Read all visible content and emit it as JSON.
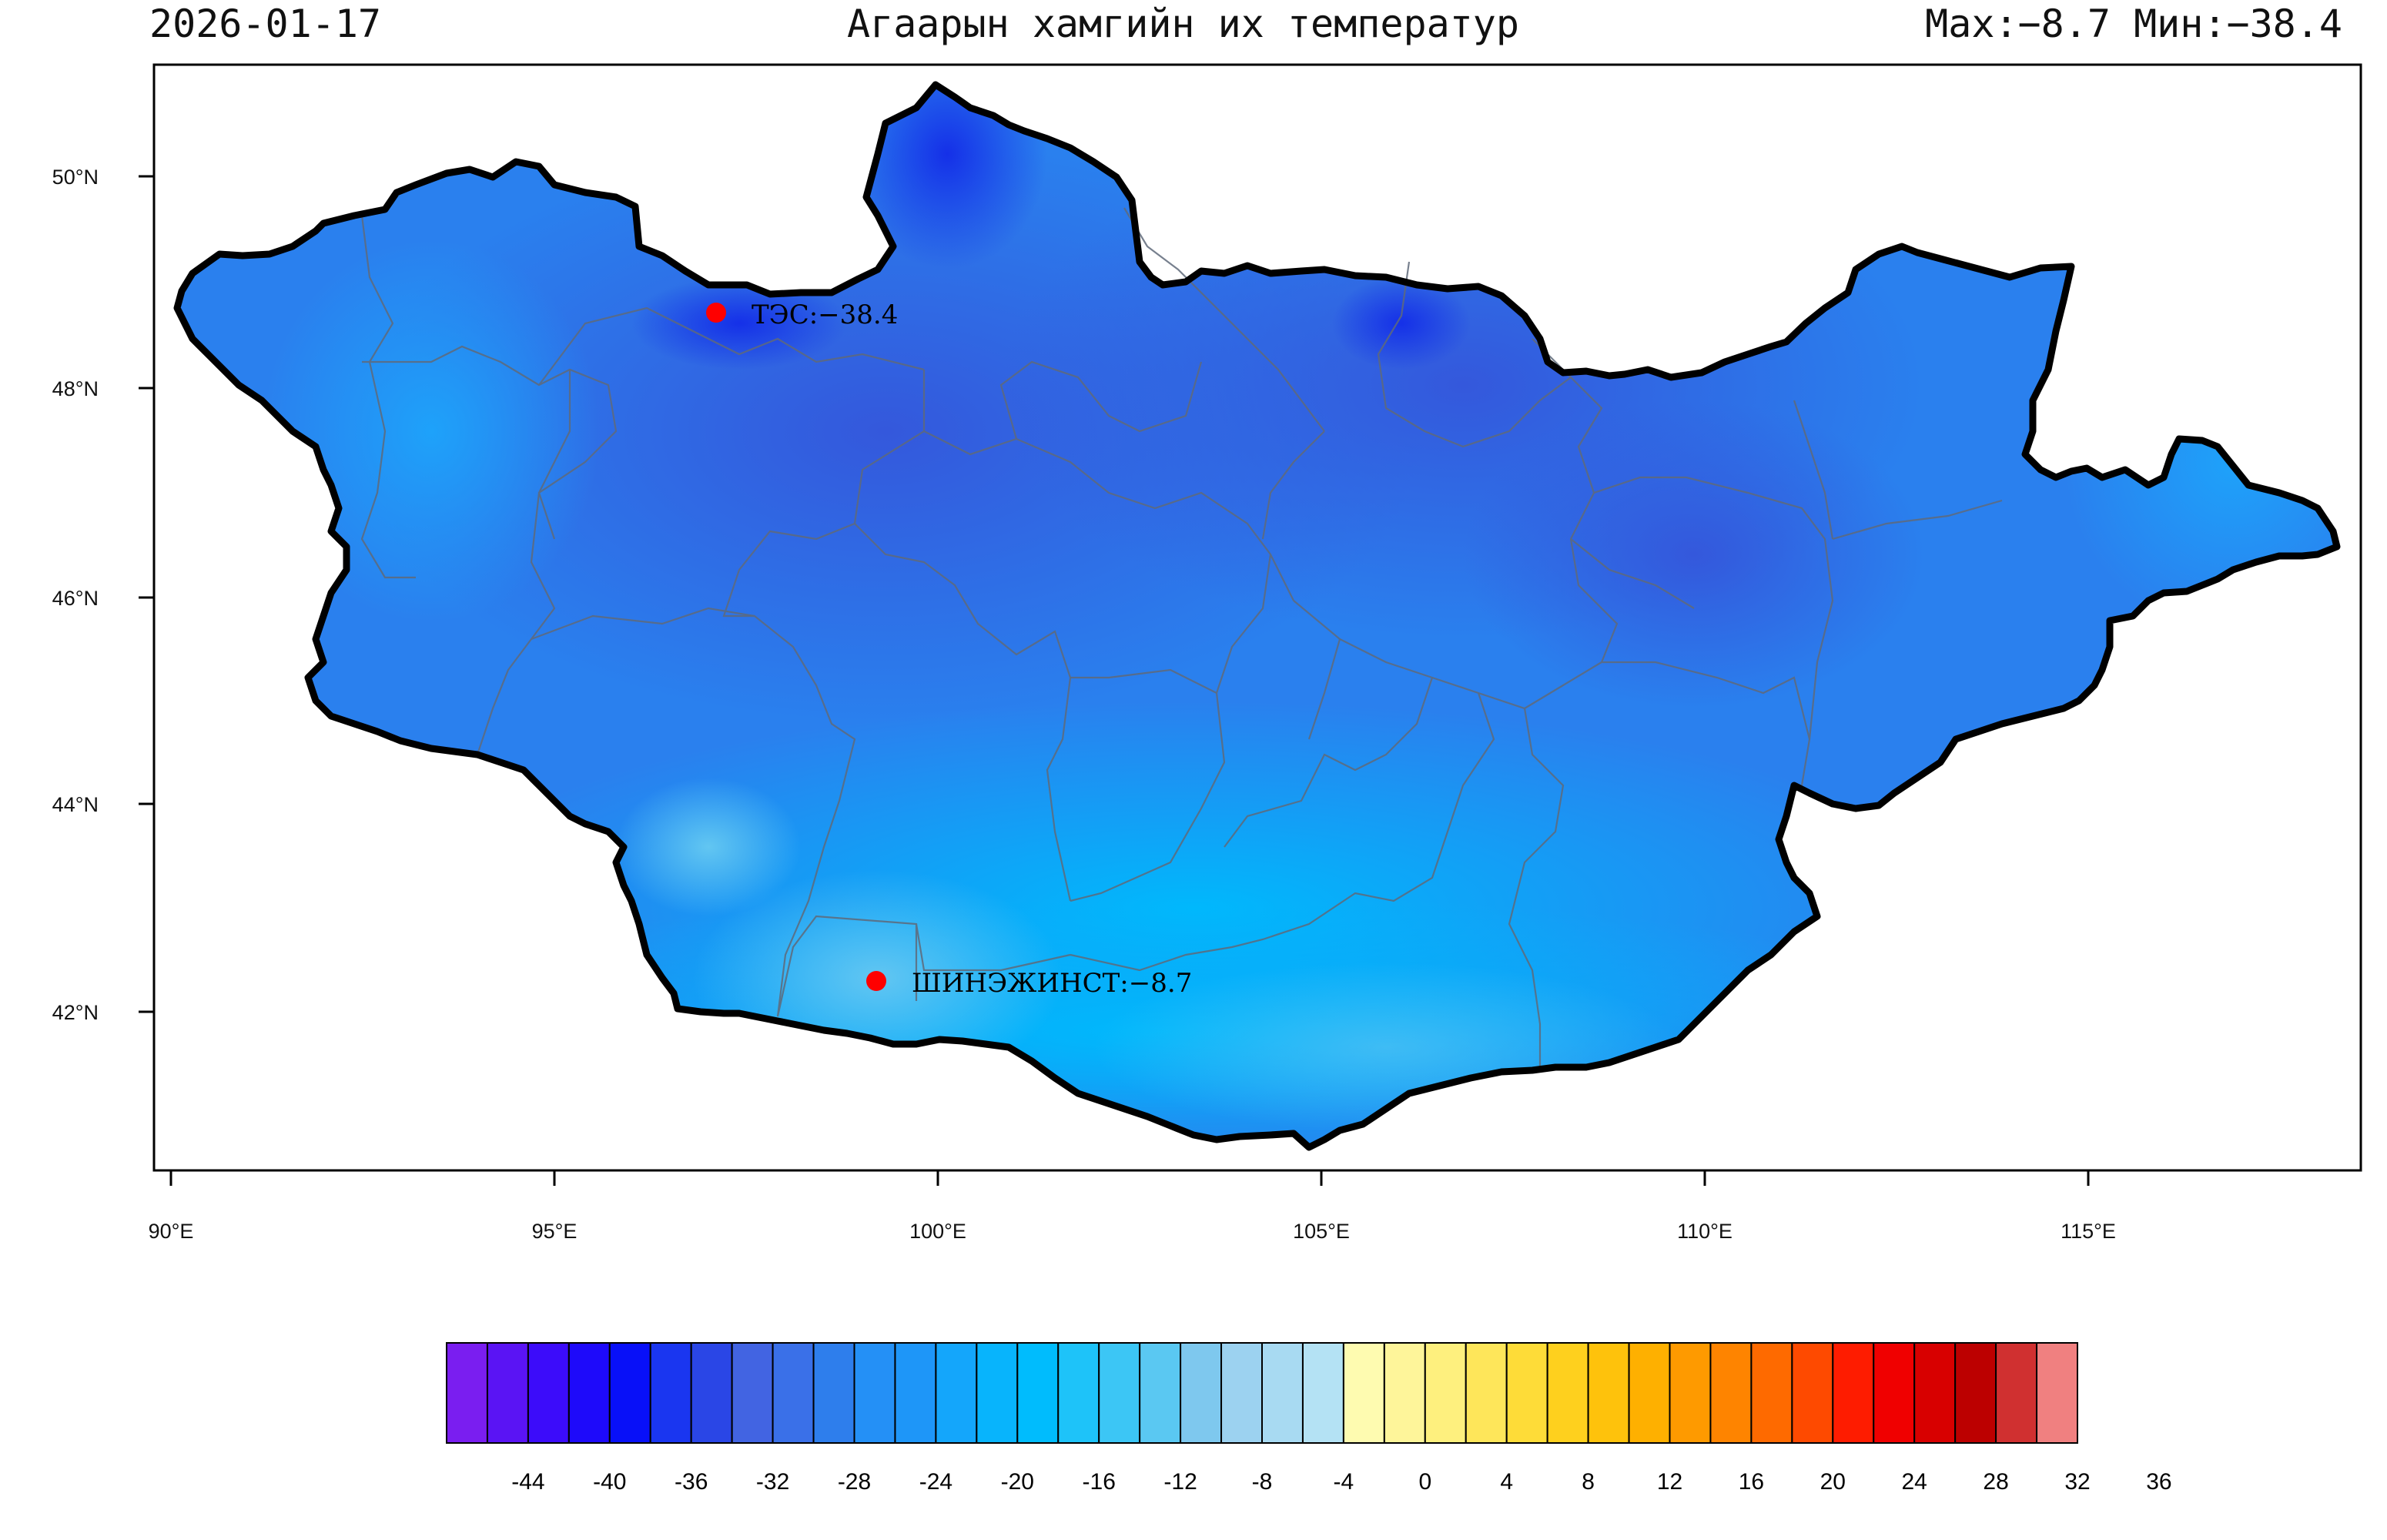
{
  "header": {
    "date": "2026-01-17",
    "title": "Агаарын хамгийн их температур",
    "stats": "Max:−8.7 Мин:−38.4"
  },
  "map": {
    "lon_ticks": [
      "90°E",
      "95°E",
      "100°E",
      "105°E",
      "110°E",
      "115°E"
    ],
    "lat_ticks": [
      "50°N",
      "48°N",
      "46°N",
      "44°N",
      "42°N"
    ],
    "outline_color": "#000000",
    "fill_color": "#2a86f0"
  },
  "stations": [
    {
      "name": "ТЭС",
      "label": "ТЭС:−38.4",
      "value": -38.4,
      "lon": 97.1,
      "lat": 48.7
    },
    {
      "name": "ШИНЭЖИНСТ",
      "label": "ШИНЭЖИНСТ:−8.7",
      "value": -8.7,
      "lon": 99.2,
      "lat": 42.3
    }
  ],
  "colorbar": {
    "labels": [
      "-44",
      "-40",
      "-36",
      "-32",
      "-28",
      "-24",
      "-20",
      "-16",
      "-12",
      "-8",
      "-4",
      "0",
      "4",
      "8",
      "12",
      "16",
      "20",
      "24",
      "28",
      "32",
      "36"
    ],
    "colors": [
      "#7a1ef0",
      "#5a14f4",
      "#3c0cfa",
      "#1e0afa",
      "#0810f8",
      "#1a36f0",
      "#2a46e6",
      "#4264e2",
      "#3a70e8",
      "#2e7eec",
      "#2490f6",
      "#1e96f8",
      "#14a6fb",
      "#08b4fc",
      "#00bcfd",
      "#1ec3f9",
      "#3cc6f5",
      "#5ac8f2",
      "#7ec8ee",
      "#9cd2f0",
      "#a8daf2",
      "#b4e2f4",
      "#fefbb0",
      "#fef59a",
      "#fef07e",
      "#fee65a",
      "#fedc38",
      "#fed01e",
      "#fec20c",
      "#feb000",
      "#fe9a00",
      "#fe8400",
      "#fe6a00",
      "#fe4a00",
      "#fe1c00",
      "#f00000",
      "#d80000",
      "#bc0000",
      "#d03030",
      "#f08080"
    ]
  }
}
